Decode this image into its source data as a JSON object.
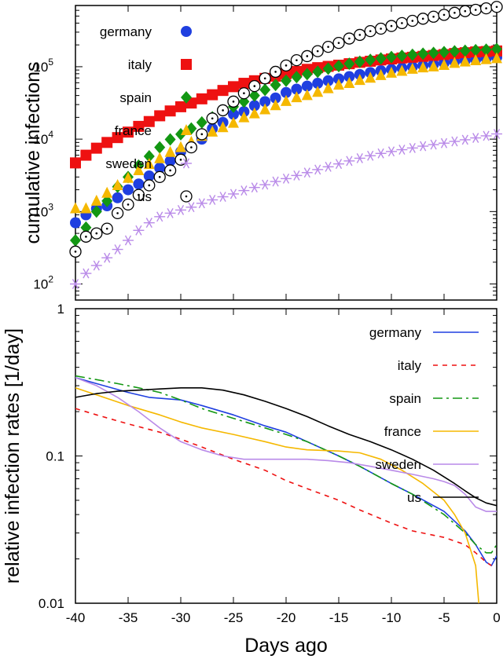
{
  "chart_data": [
    {
      "type": "scatter",
      "xlabel": "",
      "ylabel": "cumulative infections",
      "xlim": [
        -40,
        0
      ],
      "ylim": [
        60,
        700000
      ],
      "yscale": "log",
      "yticks": [
        {
          "value": 100,
          "base": "10",
          "exp": "2"
        },
        {
          "value": 1000,
          "base": "10",
          "exp": "3"
        },
        {
          "value": 10000,
          "base": "10",
          "exp": "4"
        },
        {
          "value": 100000,
          "base": "10",
          "exp": "5"
        }
      ],
      "legend_position": "top-left",
      "series": [
        {
          "name": "germany",
          "marker": "circle-filled",
          "color": "#1f3fe0",
          "x": [
            -40,
            -39,
            -38,
            -37,
            -36,
            -35,
            -34,
            -33,
            -32,
            -31,
            -30,
            -29,
            -28,
            -27,
            -26,
            -25,
            -24,
            -23,
            -22,
            -21,
            -20,
            -19,
            -18,
            -17,
            -16,
            -15,
            -14,
            -13,
            -12,
            -11,
            -10,
            -9,
            -8,
            -7,
            -6,
            -5,
            -4,
            -3,
            -2,
            -1,
            0
          ],
          "y": [
            700,
            900,
            1100,
            1200,
            1550,
            2000,
            2400,
            3100,
            4000,
            5000,
            6700,
            7900,
            10000,
            14000,
            17000,
            22000,
            24000,
            29000,
            33000,
            37000,
            44000,
            49000,
            54000,
            59000,
            64000,
            68000,
            73000,
            78000,
            83000,
            88000,
            92000,
            96000,
            100000,
            104000,
            108000,
            113000,
            118000,
            122000,
            126000,
            130000,
            135000
          ]
        },
        {
          "name": "italy",
          "marker": "square-filled",
          "color": "#ee1111",
          "x": [
            -40,
            -39,
            -38,
            -37,
            -36,
            -35,
            -34,
            -33,
            -32,
            -31,
            -30,
            -29,
            -28,
            -27,
            -26,
            -25,
            -24,
            -23,
            -22,
            -21,
            -20,
            -19,
            -18,
            -17,
            -16,
            -15,
            -14,
            -13,
            -12,
            -11,
            -10,
            -9,
            -8,
            -7,
            -6,
            -5,
            -4,
            -3,
            -2,
            -1,
            0
          ],
          "y": [
            4700,
            6000,
            7500,
            9000,
            10500,
            12500,
            15000,
            17500,
            21000,
            24500,
            28000,
            31500,
            36000,
            41000,
            47000,
            53000,
            59000,
            64000,
            69000,
            74000,
            80000,
            86000,
            92000,
            97000,
            101000,
            105000,
            110000,
            115000,
            119000,
            124000,
            128000,
            132000,
            135000,
            139000,
            143000,
            147000,
            152000,
            156000,
            160000,
            162000,
            165000
          ]
        },
        {
          "name": "spain",
          "marker": "diamond-filled",
          "color": "#139713",
          "x": [
            -40,
            -39,
            -38,
            -37,
            -36,
            -35,
            -34,
            -33,
            -32,
            -31,
            -30,
            -29,
            -28,
            -27,
            -26,
            -25,
            -24,
            -23,
            -22,
            -21,
            -20,
            -19,
            -18,
            -17,
            -16,
            -15,
            -14,
            -13,
            -12,
            -11,
            -10,
            -9,
            -8,
            -7,
            -6,
            -5,
            -4,
            -3,
            -2,
            -1,
            0
          ],
          "y": [
            400,
            600,
            1000,
            1400,
            2200,
            3000,
            4300,
            5800,
            7700,
            9900,
            11700,
            14000,
            17000,
            20000,
            25000,
            28000,
            33000,
            40000,
            48000,
            56000,
            64000,
            72000,
            79000,
            85000,
            94000,
            102000,
            110000,
            117000,
            124000,
            130000,
            136000,
            141000,
            146000,
            151000,
            155000,
            159000,
            163000,
            166000,
            169000,
            172000,
            175000
          ]
        },
        {
          "name": "france",
          "marker": "triangle-filled",
          "color": "#f5b800",
          "x": [
            -40,
            -39,
            -38,
            -37,
            -36,
            -35,
            -34,
            -33,
            -32,
            -31,
            -30,
            -29,
            -28,
            -27,
            -26,
            -25,
            -24,
            -23,
            -22,
            -21,
            -20,
            -19,
            -18,
            -17,
            -16,
            -15,
            -14,
            -13,
            -12,
            -11,
            -10,
            -9,
            -8,
            -7,
            -6,
            -5,
            -4,
            -3,
            -2,
            -1,
            0
          ],
          "y": [
            1100,
            1100,
            1400,
            1800,
            2300,
            2900,
            3700,
            4500,
            5400,
            6600,
            7700,
            9100,
            11000,
            12600,
            14500,
            16700,
            19900,
            22500,
            25600,
            29200,
            33400,
            37600,
            40200,
            44600,
            50000,
            56000,
            59000,
            65000,
            70000,
            76000,
            82000,
            87000,
            93000,
            97000,
            100000,
            105000,
            112000,
            117000,
            122000,
            126000,
            130000
          ]
        },
        {
          "name": "sweden",
          "marker": "asterisk",
          "color": "#b98ae8",
          "x": [
            -40,
            -39,
            -38,
            -37,
            -36,
            -35,
            -34,
            -33,
            -32,
            -31,
            -30,
            -29,
            -28,
            -27,
            -26,
            -25,
            -24,
            -23,
            -22,
            -21,
            -20,
            -19,
            -18,
            -17,
            -16,
            -15,
            -14,
            -13,
            -12,
            -11,
            -10,
            -9,
            -8,
            -7,
            -6,
            -5,
            -4,
            -3,
            -2,
            -1,
            0
          ],
          "y": [
            100,
            140,
            180,
            230,
            300,
            400,
            550,
            700,
            850,
            950,
            1050,
            1150,
            1300,
            1450,
            1600,
            1750,
            1950,
            2150,
            2350,
            2600,
            2850,
            3150,
            3450,
            3800,
            4150,
            4550,
            5000,
            5450,
            5900,
            6350,
            6750,
            7150,
            7550,
            8000,
            8400,
            8800,
            9300,
            9800,
            10400,
            11100,
            11800
          ]
        },
        {
          "name": "us",
          "marker": "circle-dot",
          "color": "#000000",
          "x": [
            -40,
            -39,
            -38,
            -37,
            -36,
            -35,
            -34,
            -33,
            -32,
            -31,
            -30,
            -29,
            -28,
            -27,
            -26,
            -25,
            -24,
            -23,
            -22,
            -21,
            -20,
            -19,
            -18,
            -17,
            -16,
            -15,
            -14,
            -13,
            -12,
            -11,
            -10,
            -9,
            -8,
            -7,
            -6,
            -5,
            -4,
            -3,
            -2,
            -1,
            0
          ],
          "y": [
            280,
            450,
            500,
            580,
            950,
            1250,
            1700,
            2300,
            3000,
            3700,
            5200,
            7700,
            11700,
            19300,
            25000,
            33000,
            43000,
            54000,
            69000,
            85000,
            104000,
            123000,
            140000,
            164000,
            188000,
            213000,
            245000,
            275000,
            310000,
            335000,
            365000,
            400000,
            430000,
            460000,
            490000,
            520000,
            555000,
            585000,
            610000,
            640000,
            670000
          ]
        }
      ]
    },
    {
      "type": "line",
      "xlabel": "Days ago",
      "ylabel": "relative infection rates [1/day]",
      "xlim": [
        -40,
        0
      ],
      "ylim": [
        0.01,
        1
      ],
      "yscale": "log",
      "xticks": [
        "-40",
        "-35",
        "-30",
        "-25",
        "-20",
        "-15",
        "-10",
        "-5",
        "0"
      ],
      "yticks": [
        {
          "value": 0.01,
          "label": "0.01"
        },
        {
          "value": 0.1,
          "label": "0.1"
        },
        {
          "value": 1,
          "label": "1"
        }
      ],
      "legend_position": "top-right",
      "series": [
        {
          "name": "germany",
          "color": "#1f3fe0",
          "dash": "",
          "x": [
            -40,
            -38,
            -35,
            -33,
            -30,
            -28,
            -25,
            -22,
            -20,
            -18,
            -15,
            -13,
            -10,
            -8,
            -5,
            -3,
            -2,
            -1,
            -0.5,
            0
          ],
          "y": [
            0.34,
            0.31,
            0.27,
            0.25,
            0.24,
            0.22,
            0.19,
            0.16,
            0.145,
            0.125,
            0.1,
            0.085,
            0.065,
            0.055,
            0.042,
            0.031,
            0.025,
            0.019,
            0.018,
            0.021
          ]
        },
        {
          "name": "italy",
          "color": "#ee1111",
          "dash": "6,6",
          "x": [
            -40,
            -38,
            -35,
            -32,
            -30,
            -28,
            -25,
            -22,
            -20,
            -18,
            -15,
            -13,
            -10,
            -8,
            -5,
            -3,
            -2,
            -1,
            -0.5
          ],
          "y": [
            0.21,
            0.19,
            0.165,
            0.145,
            0.13,
            0.115,
            0.095,
            0.08,
            0.068,
            0.06,
            0.05,
            0.043,
            0.035,
            0.031,
            0.028,
            0.025,
            0.022,
            0.019,
            0.018
          ]
        },
        {
          "name": "spain",
          "color": "#139713",
          "dash": "12,5,3,5",
          "x": [
            -40,
            -38,
            -36,
            -34,
            -32,
            -30,
            -28,
            -25,
            -22,
            -20,
            -18,
            -15,
            -13,
            -10,
            -8,
            -5,
            -3,
            -2,
            -1,
            -0.5,
            0
          ],
          "y": [
            0.35,
            0.33,
            0.31,
            0.29,
            0.27,
            0.24,
            0.21,
            0.18,
            0.155,
            0.14,
            0.125,
            0.1,
            0.085,
            0.065,
            0.055,
            0.04,
            0.03,
            0.025,
            0.022,
            0.022,
            0.025
          ]
        },
        {
          "name": "france",
          "color": "#f5b800",
          "dash": "",
          "x": [
            -40,
            -38,
            -35,
            -32,
            -30,
            -28,
            -25,
            -22,
            -20,
            -18,
            -15,
            -13,
            -11,
            -9,
            -7,
            -5,
            -4,
            -3,
            -2,
            -1.7
          ],
          "y": [
            0.29,
            0.26,
            0.22,
            0.19,
            0.17,
            0.155,
            0.14,
            0.125,
            0.115,
            0.11,
            0.108,
            0.105,
            0.095,
            0.08,
            0.065,
            0.05,
            0.04,
            0.03,
            0.018,
            0.01
          ]
        },
        {
          "name": "sweden",
          "color": "#b98ae8",
          "dash": "",
          "x": [
            -40,
            -38,
            -36,
            -34,
            -32,
            -30,
            -28,
            -26,
            -24,
            -22,
            -20,
            -18,
            -16,
            -14,
            -12,
            -10,
            -8,
            -6,
            -5,
            -4,
            -3,
            -2,
            -1,
            0
          ],
          "y": [
            0.34,
            0.3,
            0.25,
            0.2,
            0.155,
            0.125,
            0.11,
            0.1,
            0.095,
            0.095,
            0.095,
            0.095,
            0.093,
            0.09,
            0.085,
            0.08,
            0.075,
            0.07,
            0.067,
            0.063,
            0.055,
            0.045,
            0.042,
            0.042
          ]
        },
        {
          "name": "us",
          "color": "#000000",
          "dash": "",
          "x": [
            -40,
            -38,
            -36,
            -34,
            -32,
            -30,
            -28,
            -26,
            -24,
            -22,
            -20,
            -18,
            -16,
            -14,
            -12,
            -10,
            -8,
            -6,
            -4,
            -3,
            -2,
            -1,
            0
          ],
          "y": [
            0.25,
            0.265,
            0.275,
            0.28,
            0.285,
            0.29,
            0.29,
            0.28,
            0.26,
            0.235,
            0.21,
            0.185,
            0.16,
            0.14,
            0.125,
            0.11,
            0.095,
            0.08,
            0.065,
            0.058,
            0.052,
            0.048,
            0.046
          ]
        }
      ]
    }
  ]
}
